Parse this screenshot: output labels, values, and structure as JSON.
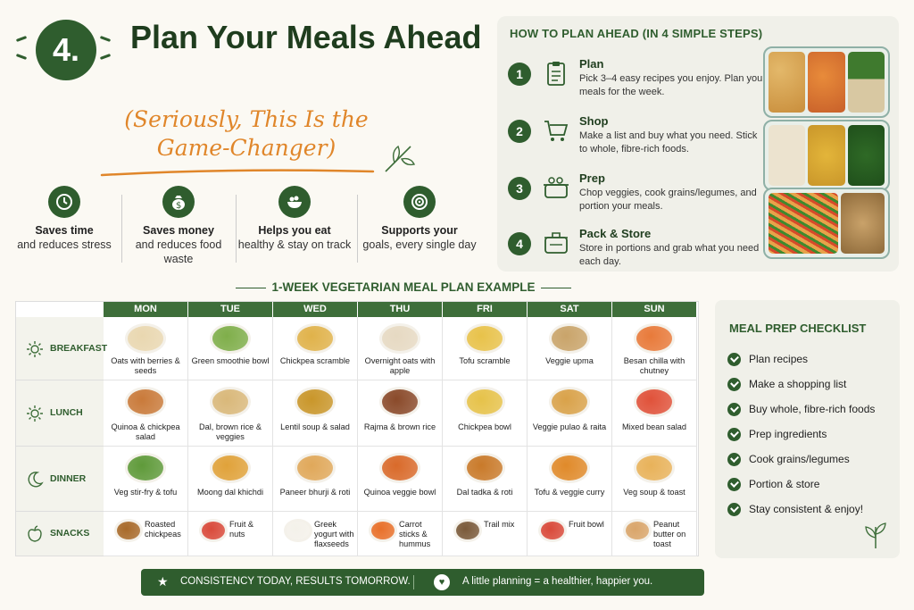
{
  "header": {
    "badge": "4.",
    "title": "Plan Your Meals Ahead",
    "subtitle": "(Seriously, This Is the Game-Changer)"
  },
  "benefits": [
    {
      "icon": "clock-icon",
      "title": "Saves time",
      "desc": "and reduces stress"
    },
    {
      "icon": "money-bag-icon",
      "title": "Saves money",
      "desc": "and reduces food waste"
    },
    {
      "icon": "salad-bowl-icon",
      "title": "Helps you eat",
      "desc": "healthy & stay on track"
    },
    {
      "icon": "target-icon",
      "title": "Supports your",
      "desc": "goals, every single day"
    }
  ],
  "steps": {
    "title": "HOW TO PLAN AHEAD (IN 4 SIMPLE STEPS)",
    "items": [
      {
        "num": "1",
        "icon": "clipboard-icon",
        "title": "Plan",
        "desc": "Pick 3–4 easy recipes you enjoy. Plan your meals for the week."
      },
      {
        "num": "2",
        "icon": "cart-icon",
        "title": "Shop",
        "desc": "Make a list and buy what you need. Stick to whole, fibre-rich foods."
      },
      {
        "num": "3",
        "icon": "pot-icon",
        "title": "Prep",
        "desc": "Chop veggies, cook grains/legumes, and portion your meals."
      },
      {
        "num": "4",
        "icon": "container-icon",
        "title": "Pack & Store",
        "desc": "Store in portions and grab what you need each day."
      }
    ]
  },
  "plan": {
    "heading": "1-WEEK VEGETARIAN MEAL PLAN EXAMPLE",
    "days": [
      "MON",
      "TUE",
      "WED",
      "THU",
      "FRI",
      "SAT",
      "SUN"
    ],
    "rows": [
      {
        "label": "BREAKFAST",
        "icon": "sun-icon",
        "meals": [
          "Oats with berries & seeds",
          "Green smoothie bowl",
          "Chickpea scramble",
          "Overnight oats with apple",
          "Tofu scramble",
          "Veggie upma",
          "Besan chilla with chutney"
        ]
      },
      {
        "label": "LUNCH",
        "icon": "sun-icon",
        "meals": [
          "Quinoa & chickpea salad",
          "Dal, brown rice & veggies",
          "Lentil soup & salad",
          "Rajma & brown rice",
          "Chickpea bowl",
          "Veggie pulao & raita",
          "Mixed bean salad"
        ]
      },
      {
        "label": "DINNER",
        "icon": "moon-icon",
        "meals": [
          "Veg stir-fry & tofu",
          "Moong dal khichdi",
          "Paneer bhurji & roti",
          "Quinoa veggie bowl",
          "Dal tadka & roti",
          "Tofu & veggie curry",
          "Veg soup & toast"
        ]
      },
      {
        "label": "SNACKS",
        "icon": "apple-icon",
        "meals": [
          "Roasted chickpeas",
          "Fruit & nuts",
          "Greek yogurt with flaxseeds",
          "Carrot sticks & hummus",
          "Trail mix",
          "Fruit bowl",
          "Peanut butter on toast"
        ]
      }
    ]
  },
  "checklist": {
    "title": "MEAL PREP CHECKLIST",
    "items": [
      "Plan recipes",
      "Make a shopping list",
      "Buy whole, fibre-rich foods",
      "Prep ingredients",
      "Cook grains/legumes",
      "Portion & store",
      "Stay consistent & enjoy!"
    ]
  },
  "footer": {
    "left": "CONSISTENCY TODAY, RESULTS TOMORROW.",
    "right": "A little planning = a healthier, happier you."
  },
  "colors": {
    "primary": "#2f5d2e",
    "accent": "#e0862a",
    "panel": "#f0f0e9"
  }
}
